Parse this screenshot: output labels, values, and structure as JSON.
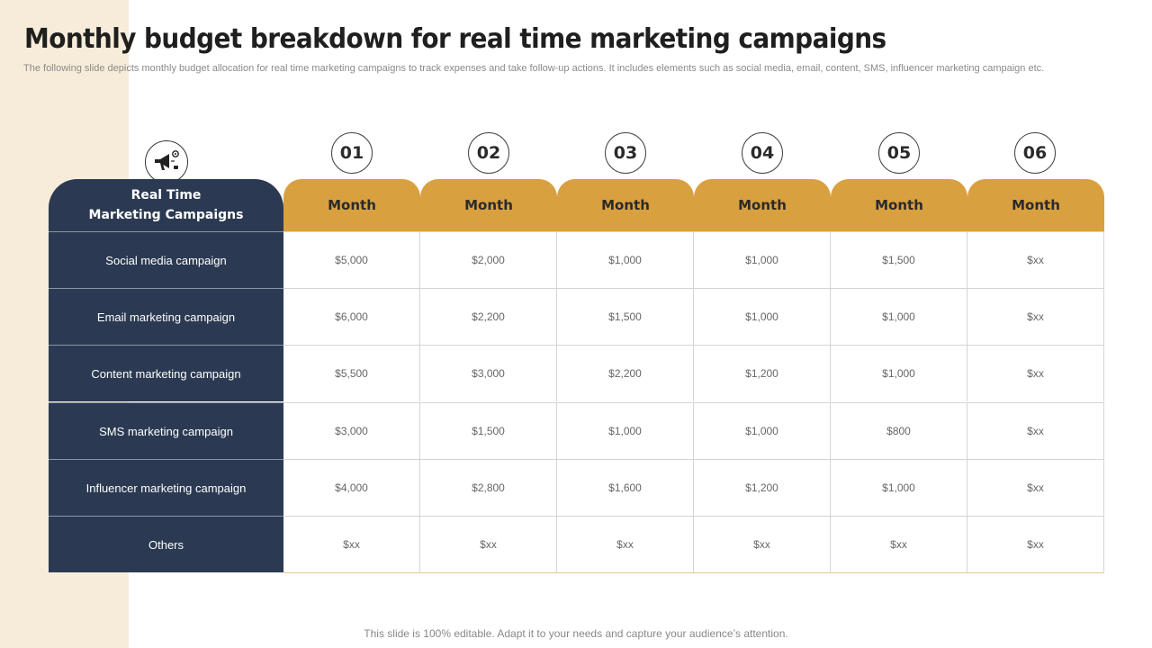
{
  "slide": {
    "title": "Monthly budget breakdown for real time marketing campaigns",
    "subtitle": "The following slide depicts monthly budget allocation for real time marketing campaigns to track expenses and take follow-up actions. It includes elements such as social media, email, content, SMS,  influencer marketing campaign etc.",
    "footer": "This slide is 100% editable. Adapt it to your needs and capture your audience’s attention."
  },
  "colors": {
    "navy": "#2b3a52",
    "gold": "#d9a040",
    "band": "#f7ecd9"
  },
  "header_icon": "megaphone-icon",
  "table": {
    "row_header_line1": "Real Time",
    "row_header_line2": "Marketing Campaigns",
    "month_numbers": [
      "01",
      "02",
      "03",
      "04",
      "05",
      "06"
    ],
    "month_labels": [
      "Month",
      "Month",
      "Month",
      "Month",
      "Month",
      "Month"
    ],
    "rows": [
      {
        "label": "Social media campaign",
        "values": [
          "$5,000",
          "$2,000",
          "$1,000",
          "$1,000",
          "$1,500",
          "$xx"
        ]
      },
      {
        "label": "Email marketing campaign",
        "values": [
          "$6,000",
          "$2,200",
          "$1,500",
          "$1,000",
          "$1,000",
          "$xx"
        ]
      },
      {
        "label": "Content marketing campaign",
        "values": [
          "$5,500",
          "$3,000",
          "$2,200",
          "$1,200",
          "$1,000",
          "$xx"
        ]
      },
      {
        "label": "SMS marketing campaign",
        "values": [
          "$3,000",
          "$1,500",
          "$1,000",
          "$1,000",
          "$800",
          "$xx"
        ]
      },
      {
        "label": "Influencer  marketing campaign",
        "values": [
          "$4,000",
          "$2,800",
          "$1,600",
          "$1,200",
          "$1,000",
          "$xx"
        ]
      },
      {
        "label": "Others",
        "values": [
          "$xx",
          "$xx",
          "$xx",
          "$xx",
          "$xx",
          "$xx"
        ]
      }
    ]
  }
}
